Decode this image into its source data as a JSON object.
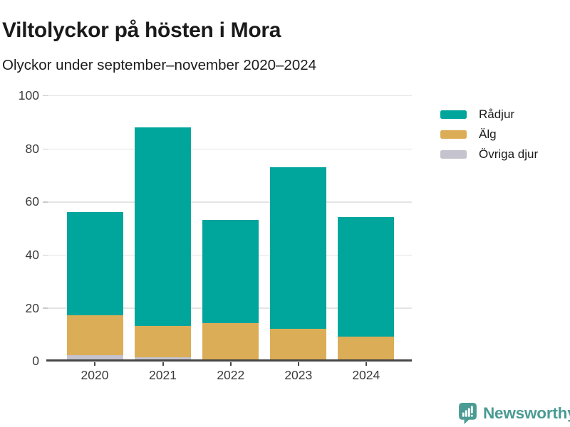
{
  "header": {
    "title": "Viltolyckor på hösten i Mora",
    "subtitle": "Olyckor under september–november 2020–2024"
  },
  "chart_data": {
    "type": "bar",
    "stacked": true,
    "title": "Viltolyckor på hösten i Mora",
    "subtitle": "Olyckor under september–november 2020–2024",
    "categories": [
      "2020",
      "2021",
      "2022",
      "2023",
      "2024"
    ],
    "series": [
      {
        "name": "Rådjur",
        "color": "#00a59c",
        "values": [
          39,
          75,
          39,
          61,
          45
        ]
      },
      {
        "name": "Älg",
        "color": "#dcad57",
        "values": [
          15,
          12,
          14,
          12,
          9
        ]
      },
      {
        "name": "Övriga djur",
        "color": "#c5c3ce",
        "values": [
          2,
          1,
          0,
          0,
          0
        ]
      }
    ],
    "totals": [
      56,
      88,
      53,
      73,
      54
    ],
    "xlabel": "",
    "ylabel": "",
    "ylim": [
      0,
      100
    ],
    "yticks": [
      0,
      20,
      40,
      60,
      80,
      100
    ],
    "grid": true,
    "legend_position": "right"
  },
  "legend": {
    "items": [
      {
        "label": "Rådjur",
        "color": "#00a59c"
      },
      {
        "label": "Älg",
        "color": "#dcad57"
      },
      {
        "label": "Övriga djur",
        "color": "#c5c3ce"
      }
    ]
  },
  "footer": {
    "brand": "Newsworthy",
    "logo_color": "#4a9b93"
  },
  "colors": {
    "radjur": "#00a59c",
    "alg": "#dcad57",
    "ovriga": "#c5c3ce",
    "axis": "#474747",
    "gridline": "#e4e4e4",
    "text": "#1a1a1a"
  }
}
